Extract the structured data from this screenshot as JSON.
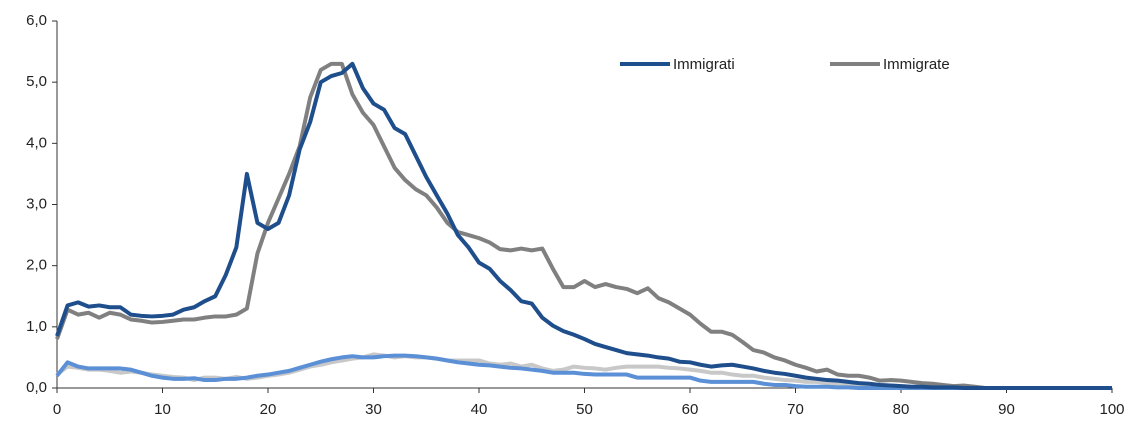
{
  "chart_data": {
    "type": "line",
    "x": [
      0,
      1,
      2,
      3,
      4,
      5,
      6,
      7,
      8,
      9,
      10,
      11,
      12,
      13,
      14,
      15,
      16,
      17,
      18,
      19,
      20,
      21,
      22,
      23,
      24,
      25,
      26,
      27,
      28,
      29,
      30,
      31,
      32,
      33,
      34,
      35,
      36,
      37,
      38,
      39,
      40,
      41,
      42,
      43,
      44,
      45,
      46,
      47,
      48,
      49,
      50,
      51,
      52,
      53,
      54,
      55,
      56,
      57,
      58,
      59,
      60,
      61,
      62,
      63,
      64,
      65,
      66,
      67,
      68,
      69,
      70,
      71,
      72,
      73,
      74,
      75,
      76,
      77,
      78,
      79,
      80,
      81,
      82,
      83,
      84,
      85,
      86,
      87,
      88,
      89,
      90,
      91,
      92,
      93,
      94,
      95,
      96,
      97,
      98,
      99,
      100
    ],
    "series": [
      {
        "name": "Immigrati",
        "color": "#1f4e8c",
        "values": [
          0.85,
          1.35,
          1.4,
          1.33,
          1.35,
          1.32,
          1.32,
          1.2,
          1.18,
          1.17,
          1.18,
          1.2,
          1.28,
          1.32,
          1.42,
          1.5,
          1.85,
          2.3,
          3.5,
          2.7,
          2.6,
          2.7,
          3.15,
          3.9,
          4.35,
          5.0,
          5.1,
          5.15,
          5.3,
          4.9,
          4.65,
          4.55,
          4.25,
          4.15,
          3.8,
          3.45,
          3.15,
          2.85,
          2.5,
          2.3,
          2.05,
          1.95,
          1.75,
          1.6,
          1.42,
          1.38,
          1.15,
          1.02,
          0.93,
          0.87,
          0.8,
          0.72,
          0.67,
          0.62,
          0.57,
          0.55,
          0.53,
          0.5,
          0.48,
          0.43,
          0.42,
          0.38,
          0.35,
          0.37,
          0.38,
          0.35,
          0.32,
          0.28,
          0.25,
          0.23,
          0.2,
          0.17,
          0.15,
          0.13,
          0.12,
          0.1,
          0.08,
          0.07,
          0.05,
          0.04,
          0.03,
          0.02,
          0.02,
          0.01,
          0.01,
          0.01,
          0,
          0,
          0,
          0,
          0,
          0,
          0,
          0,
          0,
          0,
          0,
          0,
          0,
          0,
          0
        ]
      },
      {
        "name": "Immigrate",
        "color": "#808080",
        "values": [
          0.8,
          1.28,
          1.2,
          1.23,
          1.15,
          1.23,
          1.2,
          1.12,
          1.1,
          1.07,
          1.08,
          1.1,
          1.12,
          1.12,
          1.15,
          1.17,
          1.17,
          1.2,
          1.3,
          2.2,
          2.7,
          3.1,
          3.5,
          3.95,
          4.75,
          5.2,
          5.3,
          5.3,
          4.8,
          4.5,
          4.3,
          3.95,
          3.6,
          3.4,
          3.25,
          3.15,
          2.95,
          2.7,
          2.55,
          2.5,
          2.45,
          2.38,
          2.27,
          2.25,
          2.28,
          2.25,
          2.28,
          1.95,
          1.65,
          1.65,
          1.75,
          1.65,
          1.7,
          1.65,
          1.62,
          1.55,
          1.63,
          1.47,
          1.4,
          1.3,
          1.2,
          1.05,
          0.92,
          0.92,
          0.87,
          0.75,
          0.62,
          0.58,
          0.5,
          0.45,
          0.38,
          0.33,
          0.27,
          0.3,
          0.22,
          0.2,
          0.2,
          0.17,
          0.12,
          0.13,
          0.12,
          0.1,
          0.08,
          0.07,
          0.05,
          0.03,
          0.04,
          0.02,
          0,
          0,
          0,
          0,
          0,
          0,
          0,
          0,
          0,
          0,
          0,
          0,
          0
        ]
      },
      {
        "color": "#5b8fd6",
        "values": [
          0.2,
          0.42,
          0.35,
          0.32,
          0.32,
          0.32,
          0.32,
          0.3,
          0.25,
          0.2,
          0.17,
          0.15,
          0.15,
          0.16,
          0.13,
          0.13,
          0.15,
          0.15,
          0.17,
          0.2,
          0.22,
          0.25,
          0.28,
          0.33,
          0.38,
          0.43,
          0.47,
          0.5,
          0.52,
          0.5,
          0.5,
          0.52,
          0.53,
          0.53,
          0.52,
          0.5,
          0.48,
          0.45,
          0.42,
          0.4,
          0.38,
          0.37,
          0.35,
          0.33,
          0.32,
          0.3,
          0.28,
          0.25,
          0.25,
          0.25,
          0.23,
          0.22,
          0.22,
          0.22,
          0.22,
          0.17,
          0.17,
          0.17,
          0.17,
          0.17,
          0.17,
          0.12,
          0.1,
          0.1,
          0.1,
          0.1,
          0.1,
          0.07,
          0.05,
          0.05,
          0.03,
          0.02,
          0.02,
          0.02,
          0.01,
          0.01,
          0,
          0,
          0,
          0,
          0,
          0,
          0,
          0,
          0,
          0,
          0,
          0,
          0,
          0,
          0,
          0,
          0,
          0,
          0,
          0,
          0,
          0,
          0,
          0,
          0
        ]
      },
      {
        "color": "#c8c8c8",
        "values": [
          0.22,
          0.35,
          0.33,
          0.3,
          0.3,
          0.28,
          0.25,
          0.27,
          0.25,
          0.22,
          0.2,
          0.18,
          0.17,
          0.13,
          0.17,
          0.17,
          0.15,
          0.18,
          0.15,
          0.17,
          0.2,
          0.22,
          0.25,
          0.3,
          0.35,
          0.38,
          0.42,
          0.45,
          0.48,
          0.5,
          0.55,
          0.53,
          0.5,
          0.52,
          0.5,
          0.5,
          0.48,
          0.45,
          0.45,
          0.45,
          0.45,
          0.4,
          0.38,
          0.4,
          0.35,
          0.38,
          0.32,
          0.28,
          0.3,
          0.35,
          0.33,
          0.32,
          0.3,
          0.33,
          0.35,
          0.35,
          0.35,
          0.35,
          0.33,
          0.32,
          0.3,
          0.28,
          0.25,
          0.25,
          0.22,
          0.2,
          0.2,
          0.17,
          0.15,
          0.13,
          0.12,
          0.1,
          0.1,
          0.08,
          0.07,
          0.07,
          0.05,
          0.05,
          0.05,
          0.04,
          0.03,
          0.02,
          0.02,
          0.01,
          0.01,
          0.01,
          0,
          0,
          0,
          0,
          0,
          0,
          0,
          0,
          0,
          0,
          0,
          0,
          0,
          0,
          0
        ]
      }
    ],
    "xlim": [
      0,
      100
    ],
    "xticks": [
      0,
      10,
      20,
      30,
      40,
      50,
      60,
      70,
      80,
      90,
      100
    ],
    "ylim": [
      0,
      6
    ],
    "yticks": [
      {
        "value": 0,
        "label": "0,0"
      },
      {
        "value": 1,
        "label": "1,0"
      },
      {
        "value": 2,
        "label": "2,0"
      },
      {
        "value": 3,
        "label": "3,0"
      },
      {
        "value": 4,
        "label": "4,0"
      },
      {
        "value": 5,
        "label": "5,0"
      },
      {
        "value": 6,
        "label": "6,0"
      }
    ],
    "grid": false
  }
}
